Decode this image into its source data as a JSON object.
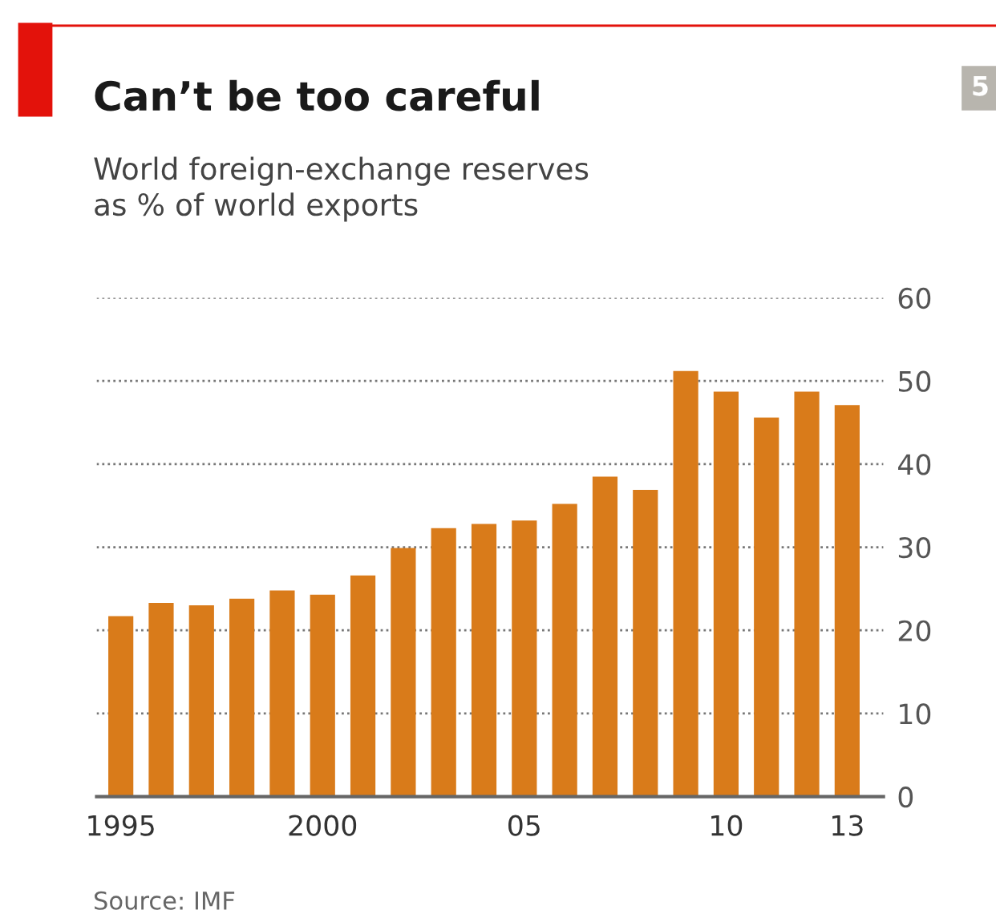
{
  "chart_data": {
    "type": "bar",
    "title": "Can’t be too careful",
    "subtitle": "World foreign-exchange reserves\nas % of world exports",
    "categories": [
      "1995",
      null,
      null,
      null,
      null,
      "2000",
      null,
      null,
      null,
      null,
      "05",
      null,
      null,
      null,
      null,
      "10",
      null,
      null,
      "13"
    ],
    "values": [
      21.7,
      23.3,
      23.0,
      23.8,
      24.8,
      24.3,
      26.6,
      29.9,
      32.3,
      32.8,
      33.2,
      35.2,
      38.5,
      36.9,
      51.2,
      48.7,
      45.6,
      48.7,
      47.1
    ],
    "color": "#d97b1a",
    "ylim": [
      0,
      60
    ],
    "yticks": [
      0,
      10,
      20,
      30,
      40,
      50,
      60
    ],
    "grid": "y",
    "annotations": [
      "Source: IMF",
      "5"
    ]
  }
}
